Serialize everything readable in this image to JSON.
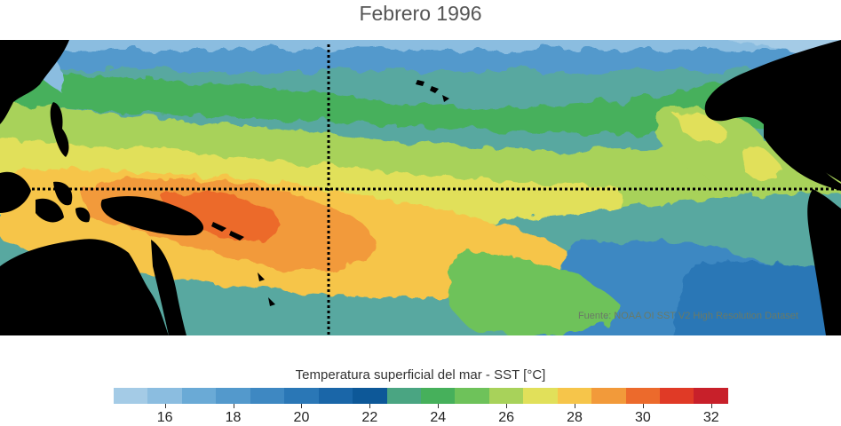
{
  "title": "Febrero 1996",
  "source": "Fuente: NOAA OI SST V2 High Resolution Dataset",
  "colorbar": {
    "label": "Temperatura superficial del mar - SST  [°C]",
    "min": 15,
    "max": 33,
    "step": 1,
    "colors": [
      "#a4cbe6",
      "#8bbde0",
      "#6aaad6",
      "#5399cc",
      "#3e88c2",
      "#2a77b6",
      "#1a66a8",
      "#0d5898",
      "#4aa582",
      "#46b05b",
      "#6ec25a",
      "#a8d25a",
      "#e1e05a",
      "#f6c54a",
      "#f29a3a",
      "#ec6a2c",
      "#e03a26",
      "#c8202a"
    ],
    "tick_labels": [
      "16",
      "18",
      "20",
      "22",
      "24",
      "26",
      "28",
      "30",
      "32"
    ],
    "tick_values": [
      16,
      18,
      20,
      22,
      24,
      26,
      28,
      30,
      32
    ]
  },
  "map": {
    "equator": "dotted",
    "date_line": "dotted",
    "land_color": "#000000"
  }
}
